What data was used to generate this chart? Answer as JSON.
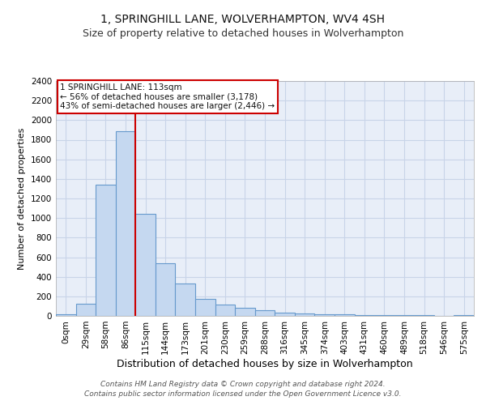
{
  "title": "1, SPRINGHILL LANE, WOLVERHAMPTON, WV4 4SH",
  "subtitle": "Size of property relative to detached houses in Wolverhampton",
  "xlabel": "Distribution of detached houses by size in Wolverhampton",
  "ylabel": "Number of detached properties",
  "bar_labels": [
    "0sqm",
    "29sqm",
    "58sqm",
    "86sqm",
    "115sqm",
    "144sqm",
    "173sqm",
    "201sqm",
    "230sqm",
    "259sqm",
    "288sqm",
    "316sqm",
    "345sqm",
    "374sqm",
    "403sqm",
    "431sqm",
    "460sqm",
    "489sqm",
    "518sqm",
    "546sqm",
    "575sqm"
  ],
  "bar_values": [
    15,
    125,
    1340,
    1890,
    1040,
    540,
    335,
    170,
    115,
    80,
    60,
    35,
    25,
    20,
    15,
    8,
    5,
    12,
    5,
    3,
    8
  ],
  "bar_color": "#c5d8f0",
  "bar_edge_color": "#6699cc",
  "vline_x_index": 3.5,
  "vline_color": "#cc0000",
  "ylim": [
    0,
    2400
  ],
  "yticks": [
    0,
    200,
    400,
    600,
    800,
    1000,
    1200,
    1400,
    1600,
    1800,
    2000,
    2200,
    2400
  ],
  "annotation_line1": "1 SPRINGHILL LANE: 113sqm",
  "annotation_line2": "← 56% of detached houses are smaller (3,178)",
  "annotation_line3": "43% of semi-detached houses are larger (2,446) →",
  "annotation_box_color": "#ffffff",
  "annotation_box_edge": "#cc0000",
  "footer_line1": "Contains HM Land Registry data © Crown copyright and database right 2024.",
  "footer_line2": "Contains public sector information licensed under the Open Government Licence v3.0.",
  "background_color": "#ffffff",
  "plot_bg_color": "#e8eef8",
  "grid_color": "#c8d4e8",
  "title_fontsize": 10,
  "subtitle_fontsize": 9,
  "ylabel_fontsize": 8,
  "xlabel_fontsize": 9,
  "tick_fontsize": 7.5,
  "annotation_fontsize": 7.5,
  "footer_fontsize": 6.5
}
